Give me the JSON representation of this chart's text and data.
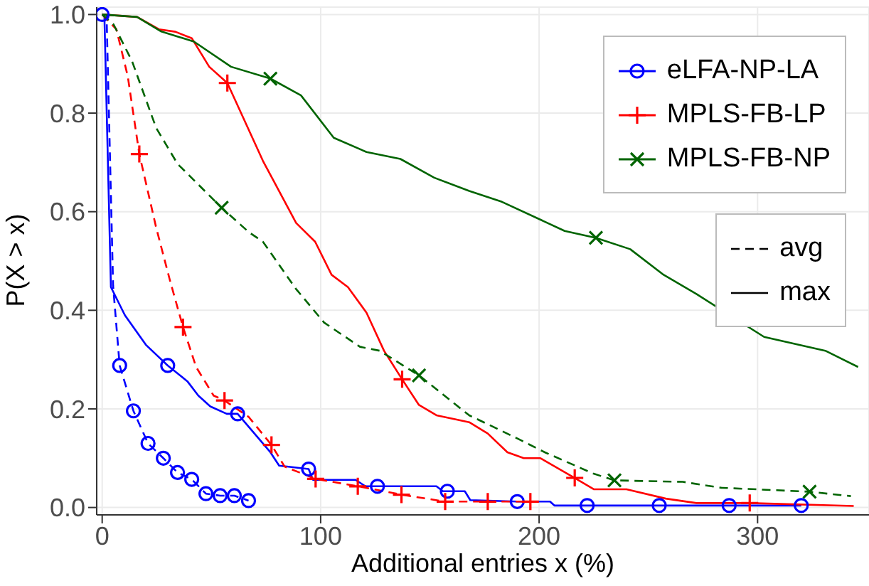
{
  "chart_data": {
    "type": "line",
    "xlabel": "Additional entries x (%)",
    "ylabel": "P(X > x)",
    "xlim": [
      -2.5,
      351
    ],
    "ylim": [
      -0.015,
      1.015
    ],
    "xticks": [
      0,
      100,
      200,
      300
    ],
    "yticks": [
      {
        "value": 0,
        "label": "0.0"
      },
      {
        "value": 0.2,
        "label": "0.2"
      },
      {
        "value": 0.4,
        "label": "0.4"
      },
      {
        "value": 0.6,
        "label": "0.6"
      },
      {
        "value": 0.8,
        "label": "0.8"
      },
      {
        "value": 1,
        "label": "1.0"
      }
    ],
    "grid": true,
    "legend": "top right",
    "marker": "none",
    "annotations": [
      "avg",
      "max"
    ],
    "series": [
      {
        "color": "#0000ff",
        "line_style": "dashed",
        "x": [
          0,
          2,
          5,
          8,
          14.3,
          21,
          28,
          34.5,
          41,
          47.5,
          54,
          60.5,
          67
        ],
        "values": [
          1,
          1,
          0.45,
          0.288,
          0.196,
          0.13,
          0.1,
          0.071,
          0.057,
          0.028,
          0.024,
          0.024,
          0.014
        ]
      },
      {
        "color": "#0000ff",
        "line_style": "solid",
        "x": [
          0,
          1,
          4,
          10.4,
          20,
          30,
          39,
          44,
          49.5,
          57,
          62,
          77,
          81,
          94.5,
          96.5,
          116,
          120.5,
          153,
          156,
          166,
          168.5,
          190,
          205,
          207,
          320
        ],
        "values": [
          1,
          1,
          0.447,
          0.39,
          0.33,
          0.288,
          0.256,
          0.227,
          0.205,
          0.19,
          0.19,
          0.112,
          0.085,
          0.078,
          0.056,
          0.056,
          0.043,
          0.043,
          0.033,
          0.033,
          0.015,
          0.012,
          0.012,
          0.004,
          0.004
        ]
      },
      {
        "color": "#ff0000",
        "line_style": "dashed",
        "x": [
          0,
          6.5,
          11.7,
          17,
          24.7,
          31,
          37,
          43,
          51,
          56,
          67,
          77.5,
          83.5,
          97.7,
          117,
          137,
          157,
          176.5,
          196
        ],
        "values": [
          1,
          0.97,
          0.875,
          0.717,
          0.568,
          0.461,
          0.366,
          0.285,
          0.227,
          0.217,
          0.184,
          0.127,
          0.083,
          0.058,
          0.043,
          0.026,
          0.012,
          0.012,
          0.012
        ]
      },
      {
        "color": "#ff0000",
        "line_style": "solid",
        "x": [
          0,
          16,
          26,
          33.5,
          41,
          49,
          57.3,
          73.6,
          88.8,
          97.5,
          105,
          112.5,
          121,
          129,
          137.3,
          145,
          153,
          161.5,
          168,
          176.5,
          185.5,
          193,
          200.6,
          216.3,
          225,
          240,
          258,
          272,
          296.4,
          344
        ],
        "values": [
          1,
          0.995,
          0.97,
          0.965,
          0.952,
          0.894,
          0.861,
          0.703,
          0.577,
          0.539,
          0.472,
          0.447,
          0.395,
          0.318,
          0.26,
          0.208,
          0.187,
          0.179,
          0.173,
          0.15,
          0.112,
          0.1,
          0.1,
          0.06,
          0.037,
          0.037,
          0.018,
          0.009,
          0.009,
          0.003
        ]
      },
      {
        "color": "#006400",
        "line_style": "dashed",
        "x": [
          0,
          5.2,
          13.7,
          24.7,
          34.5,
          54.7,
          67,
          73.6,
          88.6,
          101.6,
          118,
          127,
          145,
          168,
          189.6,
          202.6,
          224.7,
          234.5,
          265.8,
          283.4,
          323.8,
          342.7
        ],
        "values": [
          1,
          0.98,
          0.905,
          0.77,
          0.697,
          0.608,
          0.559,
          0.539,
          0.444,
          0.375,
          0.326,
          0.318,
          0.268,
          0.187,
          0.141,
          0.112,
          0.069,
          0.055,
          0.052,
          0.04,
          0.032,
          0.023
        ]
      },
      {
        "color": "#006400",
        "line_style": "solid",
        "x": [
          0,
          16,
          26.8,
          42,
          59,
          77,
          91,
          106,
          121,
          136.5,
          152,
          168,
          183,
          211.7,
          226,
          241.7,
          257,
          272,
          303,
          331,
          346
        ],
        "values": [
          1,
          0.995,
          0.966,
          0.945,
          0.894,
          0.87,
          0.836,
          0.75,
          0.721,
          0.707,
          0.669,
          0.642,
          0.62,
          0.561,
          0.547,
          0.524,
          0.472,
          0.433,
          0.346,
          0.318,
          0.285
        ]
      },
      {
        "type": "scatter",
        "name": "eLFA-NP-LA",
        "color": "#0000ff",
        "marker": "circle",
        "x": [
          0,
          8,
          14.3,
          21,
          28,
          34.5,
          41,
          47.5,
          54,
          60.5,
          67,
          30,
          62,
          94.5,
          126,
          158,
          190,
          222,
          255,
          287,
          320
        ],
        "values": [
          1,
          0.288,
          0.196,
          0.13,
          0.1,
          0.071,
          0.057,
          0.028,
          0.024,
          0.024,
          0.014,
          0.288,
          0.19,
          0.078,
          0.043,
          0.033,
          0.012,
          0.004,
          0.004,
          0.004,
          0.004
        ]
      },
      {
        "type": "scatter",
        "name": "MPLS-FB-LP",
        "color": "#ff0000",
        "marker": "cross",
        "x": [
          17,
          37,
          56,
          77.5,
          97.7,
          117,
          137,
          157,
          176.5,
          196,
          57.3,
          137.3,
          216.3,
          296.4
        ],
        "values": [
          0.717,
          0.366,
          0.217,
          0.127,
          0.058,
          0.043,
          0.026,
          0.012,
          0.012,
          0.012,
          0.861,
          0.26,
          0.06,
          0.009
        ]
      },
      {
        "type": "scatter",
        "name": "MPLS-FB-NP",
        "color": "#006400",
        "marker": "x",
        "x": [
          54.7,
          145,
          234.5,
          323.8,
          77,
          226
        ],
        "values": [
          0.608,
          0.268,
          0.055,
          0.032,
          0.87,
          0.547
        ]
      }
    ]
  }
}
